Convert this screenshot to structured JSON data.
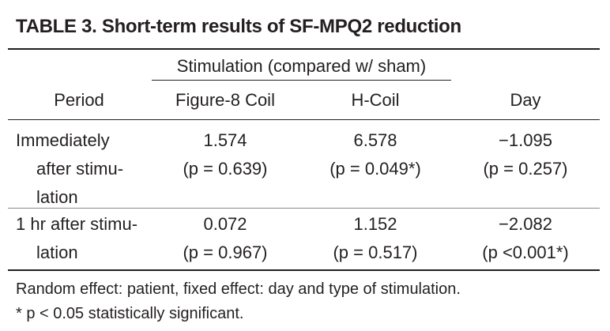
{
  "table": {
    "title": "TABLE 3. Short-term results of SF-MPQ2 reduction",
    "group_header": "Stimulation (compared w/ sham)",
    "columns": {
      "period": "Period",
      "figure8": "Figure-8 Coil",
      "hcoil": "H-Coil",
      "day": "Day"
    },
    "rows": [
      {
        "period_lines": [
          "Immediately",
          "after stimu-",
          "lation"
        ],
        "figure8": {
          "value": "1.574",
          "p": "(p = 0.639)"
        },
        "hcoil": {
          "value": "6.578",
          "p": "(p = 0.049*)"
        },
        "day": {
          "value": "−1.095",
          "p": "(p = 0.257)"
        }
      },
      {
        "period_lines": [
          "1 hr after stimu-",
          "lation"
        ],
        "figure8": {
          "value": "0.072",
          "p": "(p = 0.967)"
        },
        "hcoil": {
          "value": "1.152",
          "p": "(p = 0.517)"
        },
        "day": {
          "value": "−2.082",
          "p": "(p <0.001*)"
        }
      }
    ],
    "footnotes": [
      "Random effect: patient, fixed effect: day and type of stimulation.",
      "*  p < 0.05 statistically significant."
    ]
  }
}
